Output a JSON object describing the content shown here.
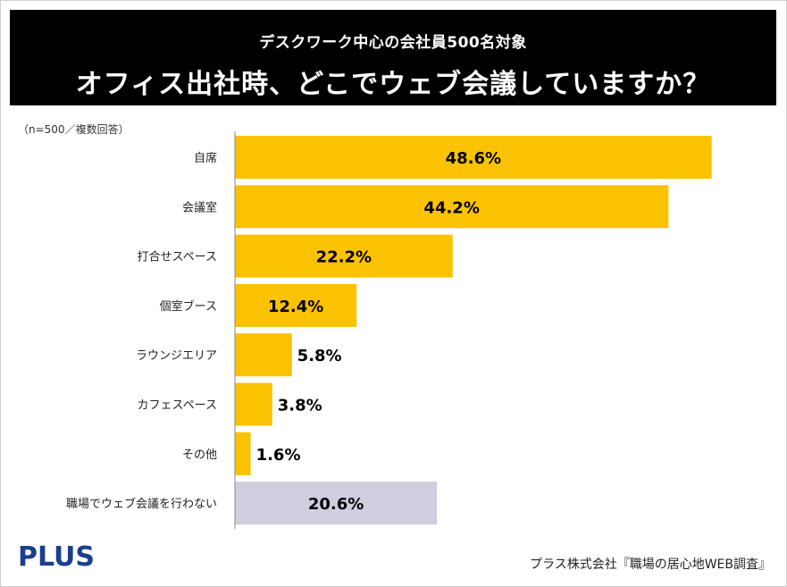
{
  "header": {
    "subtitle": "デスクワーク中心の会社員500名対象",
    "title": "オフィス出社時、どこでウェブ会議していますか？"
  },
  "note": "（n=500／複数回答）",
  "footer": {
    "logo": "PLUS",
    "source": "プラス株式会社『職場の居心地WEB調査』"
  },
  "colors": {
    "bar": "#FAC200",
    "bar_none": "#CECEDF",
    "axis": "#8a8a8a"
  },
  "chart_data": {
    "type": "bar",
    "orientation": "horizontal",
    "title": "オフィス出社時、どこでウェブ会議していますか？",
    "unit": "%",
    "xlim": [
      0,
      50
    ],
    "categories": [
      "自席",
      "会議室",
      "打合せスペース",
      "個室ブース",
      "ラウンジエリア",
      "カフェスペース",
      "その他",
      "職場でウェブ会議を行わない"
    ],
    "values": [
      48.6,
      44.2,
      22.2,
      12.4,
      5.8,
      3.8,
      1.6,
      20.6
    ],
    "labels": [
      "48.6%",
      "44.2%",
      "22.2%",
      "12.4%",
      "5.8%",
      "3.8%",
      "1.6%",
      "20.6%"
    ],
    "highlight": [
      false,
      false,
      false,
      false,
      false,
      false,
      false,
      true
    ]
  }
}
